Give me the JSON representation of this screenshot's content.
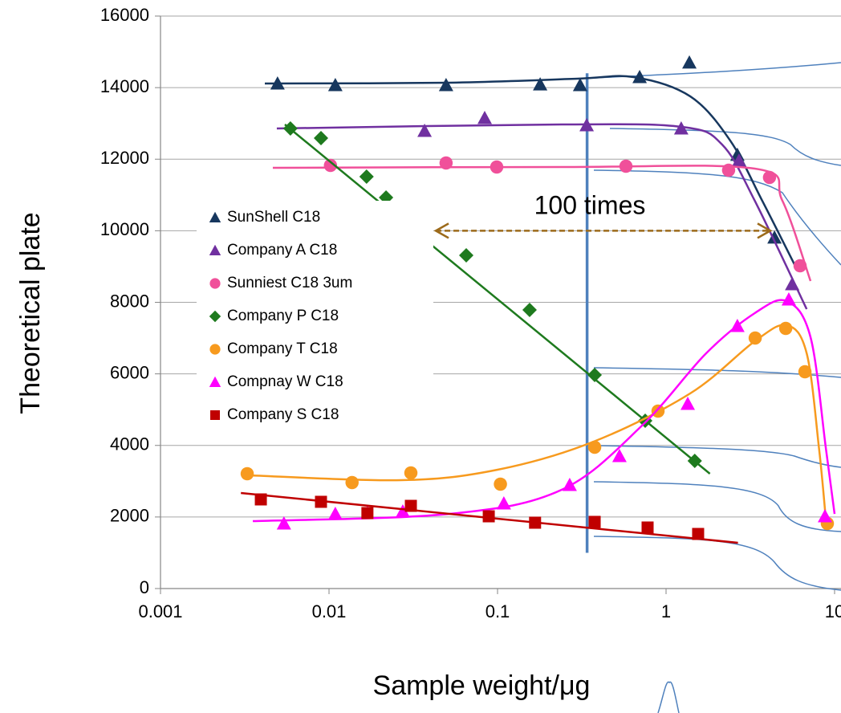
{
  "chart_data": {
    "type": "scatter",
    "x_label": "Sample weight/μg",
    "y_label": "Theoretical plate",
    "log_x": true,
    "grid": true,
    "xlim": [
      0.001,
      10
    ],
    "ylim": [
      0,
      16000
    ],
    "xticks": [
      0.001,
      0.01,
      0.1,
      1,
      10
    ],
    "yticks": [
      0,
      2000,
      4000,
      6000,
      8000,
      10000,
      12000,
      14000,
      16000
    ],
    "annotation": "100 times",
    "arrow": {
      "x": [
        0.043,
        4.16
      ],
      "y": 10000,
      "color": "#9c6a1a"
    },
    "vline": {
      "x": 0.34,
      "y": [
        1000,
        14400
      ],
      "color": "#4f81bd"
    },
    "series": [
      {
        "name": "SunShell C18",
        "color": "#17375e",
        "marker": "triangle",
        "x": [
          0.00495,
          0.0109,
          0.0495,
          0.179,
          0.309,
          0.697,
          1.375,
          2.65,
          4.4
        ],
        "values": [
          14115,
          14070,
          14070,
          14090,
          14070,
          14295,
          14700,
          12120,
          9810
        ],
        "trend_x": [
          0.00416,
          0.0519,
          0.298,
          0.642,
          1.39,
          2.4,
          3.72,
          5.8
        ],
        "trend_y": [
          14115,
          14138,
          14250,
          14295,
          13757,
          12523,
          10840,
          9044
        ]
      },
      {
        "name": "Company A C18",
        "color": "#7030a0",
        "marker": "triangle",
        "x": [
          0.0369,
          0.0839,
          0.338,
          1.23,
          2.71,
          5.6
        ],
        "values": [
          12791,
          13150,
          12948,
          12858,
          11960,
          8505
        ],
        "trend_x": [
          0.0049,
          0.24,
          1.24,
          2.15,
          3.36,
          6.83
        ],
        "trend_y": [
          12858,
          12970,
          12903,
          12409,
          10839,
          7809
        ]
      },
      {
        "name": "Sunniest C18 3um",
        "color": "#f0509a",
        "marker": "circle",
        "x": [
          0.0102,
          0.0495,
          0.0989,
          0.578,
          2.35,
          4.11,
          6.24
        ],
        "values": [
          11826,
          11893,
          11781,
          11803,
          11691,
          11490,
          9021
        ],
        "trend_x": [
          0.00464,
          0.24,
          3.36,
          4.9,
          7.2
        ],
        "trend_y": [
          11758,
          11781,
          11736,
          10839,
          8595
        ]
      },
      {
        "name": "Company P C18",
        "color": "#1e7a1e",
        "marker": "diamond",
        "x": [
          0.0059,
          0.00896,
          0.0167,
          0.0218,
          0.0652,
          0.155,
          0.377,
          0.752,
          1.48
        ],
        "values": [
          12858,
          12589,
          11512,
          10928,
          9313,
          7787,
          5969,
          4690,
          3568
        ],
        "trend_x": [
          0.00547,
          1.82
        ],
        "trend_y": [
          12970,
          3209
        ]
      },
      {
        "name": "Company T C18",
        "color": "#f79a1e",
        "marker": "circle",
        "x": [
          0.00327,
          0.0137,
          0.0306,
          0.104,
          0.377,
          0.896,
          3.38,
          5.13,
          6.67,
          9.06
        ],
        "values": [
          3209,
          2962,
          3232,
          2917,
          3950,
          4959,
          7002,
          7271,
          6059,
          1818
        ],
        "trend_x": [
          0.00334,
          0.0268,
          0.1,
          0.372,
          1.39,
          3.36,
          5.2,
          6.83,
          8.1,
          8.9
        ],
        "trend_y": [
          3164,
          3029,
          3321,
          4107,
          5453,
          6912,
          7360,
          6575,
          3882,
          1863
        ]
      },
      {
        "name": "Compnay W C18",
        "color": "#ff00ff",
        "marker": "triangle",
        "x": [
          0.0054,
          0.0109,
          0.0169,
          0.0274,
          0.109,
          0.268,
          0.529,
          1.345,
          2.65,
          5.35,
          8.77
        ],
        "values": [
          1818,
          2086,
          2109,
          2154,
          2378,
          2895,
          3703,
          5161,
          7338,
          8079,
          2019
        ],
        "trend_x": [
          0.00353,
          0.0518,
          0.24,
          0.72,
          1.73,
          3.36,
          5.2,
          7.2,
          8.9,
          10
        ],
        "trend_y": [
          1885,
          2086,
          2760,
          4555,
          6575,
          7697,
          8034,
          7024,
          3882,
          2086
        ]
      },
      {
        "name": "Company S C18",
        "color": "#c00000",
        "marker": "square",
        "x": [
          0.00394,
          0.00896,
          0.0169,
          0.0306,
          0.0887,
          0.167,
          0.377,
          0.777,
          1.55
        ],
        "values": [
          2491,
          2424,
          2109,
          2311,
          2019,
          1840,
          1863,
          1706,
          1526
        ],
        "trend_x": [
          0.003,
          2.67
        ],
        "trend_y": [
          2671,
          1279
        ]
      }
    ]
  }
}
